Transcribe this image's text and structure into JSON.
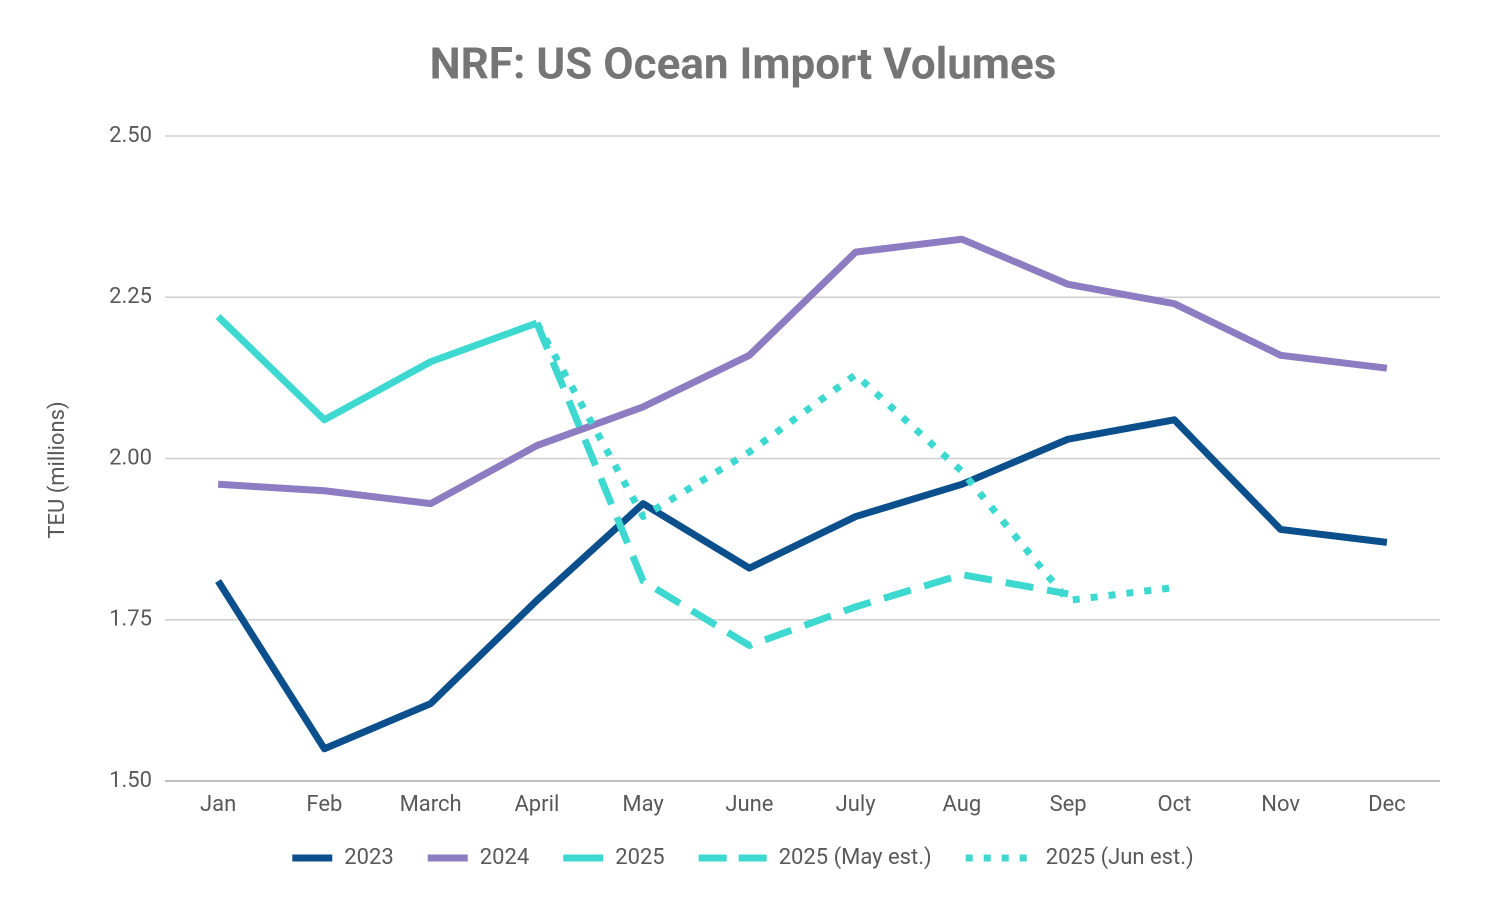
{
  "chart_data": {
    "type": "line",
    "title": "NRF: US Ocean Import Volumes",
    "y_label": "TEU (millions)",
    "categories": [
      "Jan",
      "Feb",
      "March",
      "April",
      "May",
      "June",
      "July",
      "Aug",
      "Sep",
      "Oct",
      "Nov",
      "Dec"
    ],
    "series": [
      {
        "name": "2023",
        "color": "#0b4f8c",
        "dash": "solid",
        "values": [
          1.81,
          1.55,
          1.62,
          1.78,
          1.93,
          1.83,
          1.91,
          1.96,
          2.03,
          2.06,
          1.89,
          1.87
        ]
      },
      {
        "name": "2024",
        "color": "#8e7cc3",
        "dash": "solid",
        "values": [
          1.96,
          1.95,
          1.93,
          2.02,
          2.08,
          2.16,
          2.32,
          2.34,
          2.27,
          2.24,
          2.16,
          2.14
        ]
      },
      {
        "name": "2025",
        "color": "#3dd9d0",
        "dash": "solid",
        "values": [
          2.22,
          2.06,
          2.15,
          2.21,
          null,
          null,
          null,
          null,
          null,
          null,
          null,
          null
        ]
      },
      {
        "name": "2025 (May est.)",
        "color": "#3dd9d0",
        "dash": "dashed",
        "values": [
          null,
          null,
          null,
          2.21,
          1.81,
          1.71,
          1.77,
          1.82,
          1.79,
          null,
          null,
          null
        ]
      },
      {
        "name": "2025 (Jun est.)",
        "color": "#3dd9d0",
        "dash": "dotted",
        "values": [
          null,
          null,
          null,
          2.21,
          1.91,
          2.01,
          2.13,
          1.98,
          1.78,
          1.8,
          null,
          null
        ]
      }
    ],
    "ylim": [
      1.5,
      2.5
    ],
    "yticks": [
      {
        "value": 1.5,
        "label": "1.50"
      },
      1.75,
      {
        "value": 2.0,
        "label": "2.00"
      },
      2.25,
      {
        "value": 2.5,
        "label": "2.50"
      }
    ],
    "grid": true,
    "legend": "bottom"
  }
}
